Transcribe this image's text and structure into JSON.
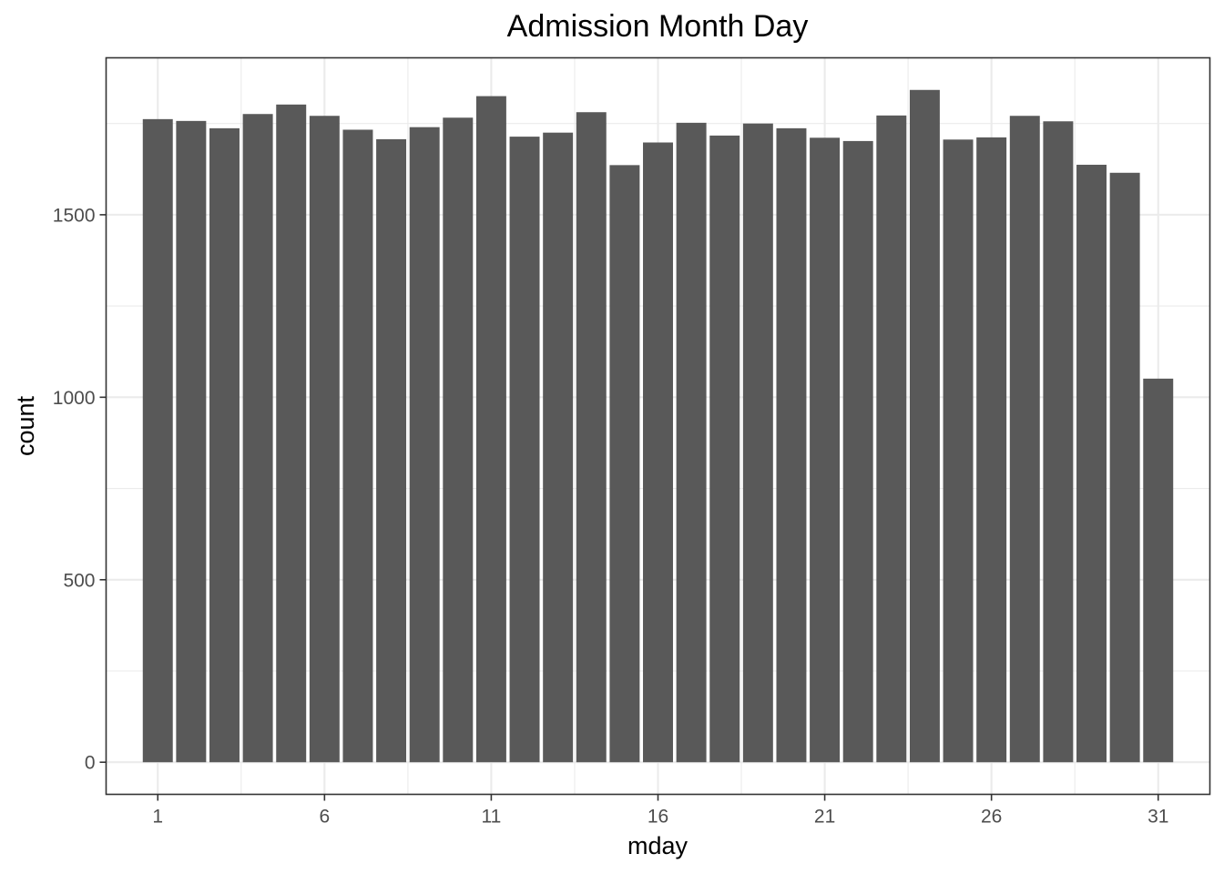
{
  "chart_data": {
    "type": "bar",
    "title": "Admission Month Day",
    "xlabel": "mday",
    "ylabel": "count",
    "categories": [
      1,
      2,
      3,
      4,
      5,
      6,
      7,
      8,
      9,
      10,
      11,
      12,
      13,
      14,
      15,
      16,
      17,
      18,
      19,
      20,
      21,
      22,
      23,
      24,
      25,
      26,
      27,
      28,
      29,
      30,
      31
    ],
    "values": [
      1762,
      1757,
      1737,
      1776,
      1802,
      1771,
      1733,
      1707,
      1740,
      1766,
      1825,
      1714,
      1725,
      1781,
      1636,
      1698,
      1752,
      1717,
      1750,
      1737,
      1711,
      1702,
      1772,
      1842,
      1706,
      1712,
      1771,
      1756,
      1637,
      1615,
      1051
    ],
    "x_ticks": [
      1,
      6,
      11,
      16,
      21,
      26,
      31
    ],
    "y_ticks": [
      0,
      500,
      1000,
      1500
    ],
    "xlim": [
      -0.55,
      32.55
    ],
    "ylim": [
      -88,
      1930
    ],
    "grid": true,
    "bar_color": "#595959",
    "theme": "bw"
  }
}
